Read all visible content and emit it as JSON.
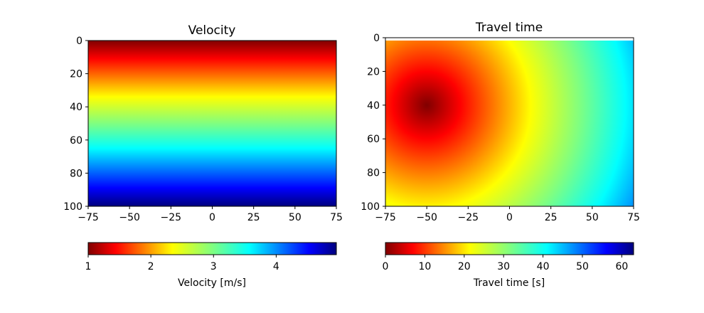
{
  "chart_data": [
    {
      "type": "heatmap",
      "title": "Velocity",
      "xlabel": "",
      "ylabel": "",
      "xlim": [
        -75,
        75
      ],
      "ylim": [
        100,
        0
      ],
      "xticks": [
        -75,
        -50,
        -25,
        0,
        25,
        50,
        75
      ],
      "xtick_labels": [
        "−75",
        "−50",
        "−25",
        "0",
        "25",
        "50",
        "75"
      ],
      "yticks": [
        0,
        20,
        40,
        60,
        80,
        100
      ],
      "ytick_labels": [
        "0",
        "20",
        "40",
        "60",
        "80",
        "100"
      ],
      "colormap": "jet_r",
      "field": "velocity = 1 + 0.04 * depth (varies with depth only)",
      "colorbar": {
        "label": "Velocity [m/s]",
        "range": [
          1,
          4.96
        ],
        "ticks": [
          1,
          2,
          3,
          4
        ],
        "tick_labels": [
          "1",
          "2",
          "3",
          "4"
        ]
      }
    },
    {
      "type": "heatmap",
      "title": "Travel time",
      "xlabel": "",
      "ylabel": "",
      "xlim": [
        -75,
        75
      ],
      "ylim": [
        100,
        0
      ],
      "xticks": [
        -75,
        -50,
        -25,
        0,
        25,
        50,
        75
      ],
      "xtick_labels": [
        "−75",
        "−50",
        "−25",
        "0",
        "25",
        "50",
        "75"
      ],
      "yticks": [
        0,
        20,
        40,
        60,
        80,
        100
      ],
      "ytick_labels": [
        "0",
        "20",
        "40",
        "60",
        "80",
        "100"
      ],
      "colormap": "jet_r",
      "source": {
        "x": -50,
        "y": 40
      },
      "field": "travel time increasing radially from source",
      "colorbar": {
        "label": "Travel time [s]",
        "range": [
          0,
          63
        ],
        "ticks": [
          0,
          10,
          20,
          30,
          40,
          50,
          60
        ],
        "tick_labels": [
          "0",
          "10",
          "20",
          "30",
          "40",
          "50",
          "60"
        ]
      }
    }
  ]
}
